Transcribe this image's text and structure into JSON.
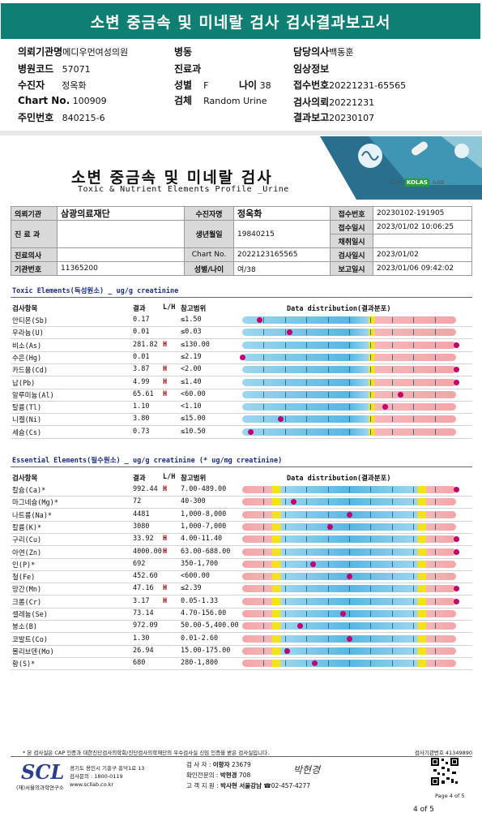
{
  "banner": {
    "title": "소변 중금속 및 미네랄 검사 검사결과보고서"
  },
  "summary": {
    "rows": [
      [
        {
          "k": "의뢰기관명",
          "v": "메디우먼여성의원"
        },
        {
          "k": "병동",
          "v": ""
        },
        {
          "k": "담당의사",
          "v": "백동훈"
        }
      ],
      [
        {
          "k": "병원코드",
          "v": "57071"
        },
        {
          "k": "진료과",
          "v": ""
        },
        {
          "k": "임상정보",
          "v": ""
        }
      ],
      [
        {
          "k": "수진자",
          "v": "정옥화"
        },
        {
          "k": "성별",
          "v": "F"
        },
        {
          "k": "나이",
          "v": "38"
        },
        {
          "k": "접수번호",
          "v": "20221231-65565"
        }
      ],
      [
        {
          "k": "Chart No.",
          "v": "100909"
        },
        {
          "k": "검체",
          "v": "Random Urine"
        },
        {
          "k": "검사의뢰",
          "v": "20221231"
        }
      ],
      [
        {
          "k": "주민번호",
          "v": "840215-6"
        },
        {
          "k": "결과보고",
          "v": "20230107"
        }
      ]
    ]
  },
  "report": {
    "title": "소변 중금속 및 미네랄 검사",
    "subtitle": "Toxic & Nutrient Elements Profile _Urine",
    "logos": [
      "CAP",
      "KOLAS",
      "AAB"
    ],
    "info": {
      "r1": [
        {
          "k": "의뢰기관",
          "v": "삼광의료재단"
        },
        {
          "k": "수진자명",
          "v": "정옥화"
        },
        {
          "k": "접수번호",
          "v": "20230102-191905"
        }
      ],
      "r2": [
        {
          "k": "진 료 과",
          "v": ""
        },
        {
          "k": "생년월일",
          "v": "19840215"
        },
        {
          "k": "접수일시",
          "v": "2023/01/02  10:06:25"
        }
      ],
      "r2b": [
        {
          "k": "채취일시",
          "v": ""
        }
      ],
      "r3": [
        {
          "k": "진료의사",
          "v": ""
        },
        {
          "k": "Chart No.",
          "v": "2022123165565"
        },
        {
          "k": "검사일시",
          "v": "2023/01/02"
        }
      ],
      "r4": [
        {
          "k": "기관번호",
          "v": "11365200"
        },
        {
          "k": "성별/나이",
          "v": "여/38"
        },
        {
          "k": "보고일시",
          "v": "2023/01/06  09:42:02"
        }
      ]
    },
    "toxic": {
      "title": "Toxic Elements(독성원소) _ ug/g creatinine",
      "headers": {
        "item": "검사항목",
        "result": "결과",
        "lh": "L/H",
        "ref": "참고범위",
        "dist": "Data distribution(결과분포)"
      },
      "rows": [
        {
          "name": "안티몬(Sb)",
          "result": "0.17",
          "flag": "",
          "ref": "≤1.50",
          "pos": 0.08
        },
        {
          "name": "우라늄(U)",
          "result": "0.01",
          "flag": "",
          "ref": "≤0.03",
          "pos": 0.22
        },
        {
          "name": "비소(As)",
          "result": "281.82",
          "flag": "H",
          "ref": "≤130.00",
          "pos": 1.0
        },
        {
          "name": "수은(Hg)",
          "result": "0.01",
          "flag": "",
          "ref": "≤2.19",
          "pos": 0.0
        },
        {
          "name": "카드뮴(Cd)",
          "result": "3.87",
          "flag": "H",
          "ref": "<2.00",
          "pos": 1.0
        },
        {
          "name": "납(Pb)",
          "result": "4.99",
          "flag": "H",
          "ref": "≤1.40",
          "pos": 1.0
        },
        {
          "name": "알루미늄(Al)",
          "result": "65.61",
          "flag": "H",
          "ref": "<60.00",
          "pos": 0.74
        },
        {
          "name": "탈륨(Tl)",
          "result": "1.10",
          "flag": "",
          "ref": "<1.10",
          "pos": 0.67
        },
        {
          "name": "니켈(Ni)",
          "result": "3.80",
          "flag": "",
          "ref": "≤15.00",
          "pos": 0.18
        },
        {
          "name": "세슘(Cs)",
          "result": "0.73",
          "flag": "",
          "ref": "≤10.50",
          "pos": 0.04
        }
      ]
    },
    "essential": {
      "title": "Essential Elements(필수원소) _ ug/g creatinine (* ug/mg creatinine)",
      "headers": {
        "item": "검사항목",
        "result": "결과",
        "lh": "L/H",
        "ref": "참고범위",
        "dist": "Data distribution(결과분포)"
      },
      "rows": [
        {
          "name": "칼슘(Ca)*",
          "result": "992.44",
          "flag": "H",
          "ref": "7.00-489.00",
          "pos": 1.0
        },
        {
          "name": "마그네슘(Mg)*",
          "result": "72",
          "flag": "",
          "ref": "40-300",
          "pos": 0.24
        },
        {
          "name": "나트륨(Na)*",
          "result": "4481",
          "flag": "",
          "ref": "1,000-8,000",
          "pos": 0.5
        },
        {
          "name": "칼륨(K)*",
          "result": "3080",
          "flag": "",
          "ref": "1,000-7,000",
          "pos": 0.41
        },
        {
          "name": "구리(Cu)",
          "result": "33.92",
          "flag": "H",
          "ref": "4.00-11.40",
          "pos": 1.0
        },
        {
          "name": "아연(Zn)",
          "result": "4000.00",
          "flag": "H",
          "ref": "63.00-688.00",
          "pos": 1.0
        },
        {
          "name": "인(P)*",
          "result": "692",
          "flag": "",
          "ref": "350-1,700",
          "pos": 0.33
        },
        {
          "name": "철(Fe)",
          "result": "452.60",
          "flag": "",
          "ref": "<600.00",
          "pos": 0.5
        },
        {
          "name": "망간(Mn)",
          "result": "47.16",
          "flag": "H",
          "ref": "≤2.39",
          "pos": 1.0
        },
        {
          "name": "크롬(Cr)",
          "result": "3.17",
          "flag": "H",
          "ref": "0.05-1.33",
          "pos": 1.0
        },
        {
          "name": "셀레늄(Se)",
          "result": "73.14",
          "flag": "",
          "ref": "4.70-156.00",
          "pos": 0.47
        },
        {
          "name": "붕소(B)",
          "result": "972.09",
          "flag": "",
          "ref": "50.00-5,400.00",
          "pos": 0.27
        },
        {
          "name": "코발트(Co)",
          "result": "1.30",
          "flag": "",
          "ref": "0.01-2.60",
          "pos": 0.5
        },
        {
          "name": "몰리브덴(Mo)",
          "result": "26.94",
          "flag": "",
          "ref": "15.00-175.00",
          "pos": 0.21
        },
        {
          "name": "황(S)*",
          "result": "680",
          "flag": "",
          "ref": "280-1,800",
          "pos": 0.34
        }
      ]
    }
  },
  "footer": {
    "note": "* 본 검사실은 CAP 인증과 대한진단검사의학회/진단검사의학재단의 우수검사실 신임 인증을 받은 검사실입니다.",
    "code_label": "검사기관번호",
    "code": "41349890",
    "logo": "SCL",
    "logo_sub": "(재)서울의과학연구소",
    "addr1": "경기도 용인시 기흥구 흥덕1로 13",
    "addr2": "검사문의 : 1800-0119",
    "addr3": "www.scllab.co.kr",
    "staff1_k": "검 사 자 :",
    "staff1_v": "이향자",
    "staff1_n": "23679",
    "staff2_k": "확인전문의 :",
    "staff2_v": "박현경",
    "staff2_n": "708",
    "staff3_k": "고 객 지 원 :",
    "staff3_v": "박사현 서울강남",
    "staff3_n": "☎02-457-4277",
    "sign": "박현경",
    "page_of": "Page 4 of 5",
    "page_bottom": "4 of 5"
  }
}
